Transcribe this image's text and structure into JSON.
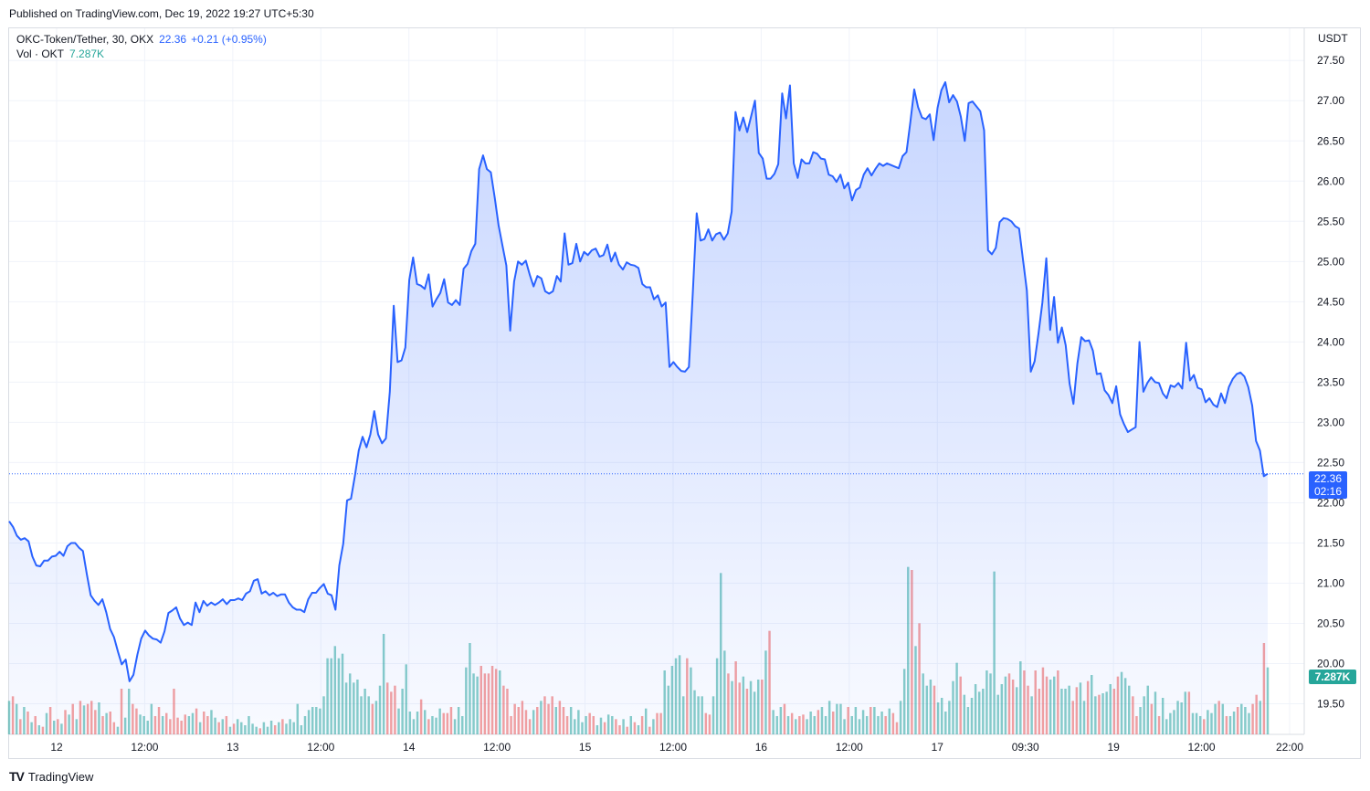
{
  "header": {
    "published": "Published on TradingView.com, Dec 19, 2022 19:27 UTC+5:30"
  },
  "legend": {
    "symbol": "OKC-Token/Tether, 30, OKX",
    "last": "22.36",
    "change": "+0.21 (+0.95%)",
    "volume_label": "Vol · OKT",
    "volume_value": "7.287K"
  },
  "axis": {
    "currency": "USDT"
  },
  "badges": {
    "price": "22.36",
    "countdown": "02:16",
    "volume": "7.287K"
  },
  "footer": {
    "brand": "TradingView",
    "logo_icon": "tradingview-logo-icon"
  },
  "colors": {
    "line": "#2962ff",
    "area": "#2962ff",
    "vol_up": "#26a69a",
    "vol_down": "#ef5350",
    "grid": "#f0f3fa"
  },
  "chart_data": {
    "type": "area",
    "ylim": [
      19.12,
      27.9
    ],
    "y_ticks": [
      "19.50",
      "20.00",
      "20.50",
      "21.00",
      "21.50",
      "22.00",
      "22.50",
      "23.00",
      "23.50",
      "24.00",
      "24.50",
      "25.00",
      "25.50",
      "26.00",
      "26.50",
      "27.00",
      "27.50"
    ],
    "x_ticks": [
      "12",
      "12:00",
      "13",
      "12:00",
      "14",
      "12:00",
      "15",
      "12:00",
      "16",
      "12:00",
      "17",
      "09:30",
      "19",
      "12:00",
      "22:00"
    ],
    "price": [
      21.77,
      21.7,
      21.59,
      21.54,
      21.56,
      21.52,
      21.33,
      21.22,
      21.21,
      21.28,
      21.28,
      21.33,
      21.34,
      21.39,
      21.34,
      21.46,
      21.5,
      21.5,
      21.44,
      21.4,
      21.11,
      20.85,
      20.78,
      20.73,
      20.8,
      20.64,
      20.43,
      20.33,
      20.15,
      19.99,
      20.05,
      19.78,
      19.86,
      20.11,
      20.31,
      20.41,
      20.35,
      20.31,
      20.3,
      20.26,
      20.4,
      20.63,
      20.66,
      20.7,
      20.56,
      20.48,
      20.51,
      20.48,
      20.76,
      20.64,
      20.78,
      20.72,
      20.76,
      20.73,
      20.76,
      20.8,
      20.74,
      20.79,
      20.79,
      20.81,
      20.79,
      20.87,
      20.9,
      21.03,
      21.05,
      20.87,
      20.9,
      20.85,
      20.88,
      20.84,
      20.86,
      20.86,
      20.76,
      20.7,
      20.67,
      20.67,
      20.64,
      20.8,
      20.88,
      20.88,
      20.94,
      20.99,
      20.87,
      20.85,
      20.67,
      21.22,
      21.49,
      22.03,
      22.05,
      22.33,
      22.65,
      22.82,
      22.69,
      22.85,
      23.14,
      22.85,
      22.74,
      22.8,
      23.38,
      24.45,
      23.75,
      23.77,
      23.93,
      24.77,
      25.05,
      24.72,
      24.7,
      24.66,
      24.84,
      24.44,
      24.53,
      24.61,
      24.78,
      24.49,
      24.46,
      24.52,
      24.46,
      24.91,
      24.97,
      25.13,
      25.22,
      26.15,
      26.32,
      26.15,
      26.11,
      25.8,
      25.45,
      25.2,
      24.95,
      24.14,
      24.75,
      25.0,
      24.96,
      25.01,
      24.84,
      24.69,
      24.82,
      24.79,
      24.63,
      24.6,
      24.63,
      24.82,
      24.75,
      25.35,
      24.96,
      24.98,
      25.22,
      25.0,
      25.12,
      25.08,
      25.14,
      25.16,
      25.06,
      25.08,
      25.21,
      25.0,
      25.11,
      24.96,
      24.9,
      24.99,
      24.96,
      24.95,
      24.92,
      24.72,
      24.68,
      24.68,
      24.53,
      24.58,
      24.44,
      24.49,
      23.69,
      23.75,
      23.69,
      23.64,
      23.63,
      23.69,
      24.6,
      25.6,
      25.26,
      25.28,
      25.4,
      25.26,
      25.34,
      25.36,
      25.27,
      25.35,
      25.62,
      26.86,
      26.63,
      26.79,
      26.61,
      26.8,
      27.0,
      26.35,
      26.28,
      26.03,
      26.03,
      26.09,
      26.21,
      27.09,
      26.78,
      27.19,
      26.22,
      26.04,
      26.27,
      26.22,
      26.22,
      26.36,
      26.34,
      26.28,
      26.27,
      26.08,
      26.06,
      25.99,
      26.08,
      25.91,
      25.98,
      25.76,
      25.89,
      25.92,
      26.08,
      26.16,
      26.07,
      26.15,
      26.22,
      26.19,
      26.22,
      26.2,
      26.18,
      26.16,
      26.31,
      26.36,
      26.73,
      27.14,
      26.92,
      26.79,
      26.77,
      26.83,
      26.51,
      26.91,
      27.13,
      27.23,
      26.98,
      27.07,
      26.99,
      26.8,
      26.5,
      26.97,
      26.99,
      26.93,
      26.87,
      26.63,
      25.14,
      25.09,
      25.17,
      25.49,
      25.54,
      25.53,
      25.5,
      25.44,
      25.41,
      25.02,
      24.64,
      23.63,
      23.76,
      24.11,
      24.49,
      25.04,
      24.15,
      24.56,
      23.99,
      24.18,
      23.96,
      23.48,
      23.23,
      23.73,
      24.06,
      24.01,
      24.02,
      23.89,
      23.6,
      23.61,
      23.4,
      23.34,
      23.24,
      23.45,
      23.1,
      22.98,
      22.88,
      22.91,
      22.94,
      24.0,
      23.38,
      23.49,
      23.56,
      23.5,
      23.49,
      23.36,
      23.3,
      23.46,
      23.44,
      23.49,
      23.42,
      23.99,
      23.52,
      23.59,
      23.43,
      23.41,
      23.25,
      23.3,
      23.22,
      23.19,
      23.36,
      23.24,
      23.44,
      23.54,
      23.6,
      23.62,
      23.57,
      23.44,
      23.21,
      22.77,
      22.65,
      22.33,
      22.36
    ],
    "volume": [
      0.22,
      -0.25,
      0.2,
      -0.1,
      0.18,
      -0.15,
      0.08,
      -0.12,
      0.06,
      -0.05,
      0.14,
      -0.18,
      0.09,
      -0.1,
      0.07,
      -0.16,
      0.13,
      -0.2,
      0.1,
      -0.22,
      0.19,
      -0.2,
      -0.22,
      -0.16,
      0.21,
      -0.12,
      0.14,
      -0.15,
      -0.08,
      0.05,
      -0.3,
      0.11,
      0.3,
      -0.2,
      -0.17,
      0.13,
      0.12,
      0.09,
      0.2,
      -0.12,
      -0.18,
      0.12,
      -0.14,
      -0.1,
      -0.3,
      -0.11,
      -0.09,
      -0.13,
      0.12,
      0.14,
      -0.17,
      0.08,
      -0.15,
      -0.12,
      0.16,
      0.11,
      -0.08,
      0.1,
      -0.12,
      0.05,
      -0.07,
      0.1,
      0.08,
      0.06,
      0.12,
      0.07,
      0.05,
      -0.04,
      0.08,
      0.05,
      0.09,
      -0.06,
      0.08,
      -0.1,
      0.07,
      0.1,
      0.08,
      0.2,
      0.06,
      0.12,
      0.16,
      0.18,
      0.18,
      0.17,
      0.25,
      0.5,
      0.5,
      0.58,
      0.5,
      0.53,
      0.34,
      0.4,
      0.34,
      0.36,
      0.25,
      0.3,
      0.25,
      -0.2,
      0.22,
      0.32,
      0.66,
      -0.34,
      -0.28,
      -0.32,
      0.17,
      0.3,
      0.46,
      0.15,
      0.1,
      0.15,
      -0.23,
      0.16,
      -0.1,
      0.12,
      0.11,
      0.17,
      -0.14,
      -0.14,
      -0.18,
      0.1,
      0.18,
      0.12,
      0.44,
      0.6,
      0.4,
      0.38,
      -0.45,
      -0.4,
      -0.4,
      -0.45,
      -0.43,
      0.42,
      -0.32,
      -0.3,
      -0.12,
      -0.2,
      -0.18,
      -0.22,
      -0.16,
      -0.1,
      0.16,
      -0.18,
      0.22,
      -0.25,
      -0.2,
      -0.25,
      0.18,
      -0.22,
      -0.18,
      -0.12,
      0.18,
      0.1,
      0.16,
      0.08,
      0.12,
      -0.14,
      -0.12,
      0.06,
      0.11,
      -0.08,
      0.13,
      0.12,
      -0.1,
      -0.06,
      0.1,
      -0.05,
      0.12,
      -0.08,
      0.06,
      -0.12,
      0.17,
      -0.05,
      0.1,
      -0.14,
      -0.14,
      0.42,
      0.32,
      0.45,
      0.5,
      0.52,
      0.25,
      -0.5,
      0.44,
      0.29,
      0.25,
      0.25,
      -0.14,
      -0.13,
      0.25,
      0.5,
      1.06,
      0.55,
      -0.4,
      0.35,
      -0.48,
      -0.34,
      0.38,
      -0.3,
      0.35,
      0.28,
      0.36,
      -0.36,
      0.55,
      -0.68,
      0.16,
      0.12,
      0.18,
      -0.2,
      0.12,
      -0.14,
      0.1,
      -0.12,
      -0.13,
      0.1,
      0.15,
      0.12,
      -0.16,
      0.18,
      0.12,
      0.22,
      -0.15,
      0.2,
      0.2,
      0.1,
      -0.18,
      0.12,
      0.18,
      0.1,
      0.16,
      0.12,
      -0.18,
      0.18,
      0.12,
      0.15,
      -0.12,
      0.17,
      -0.14,
      -0.08,
      0.22,
      0.43,
      1.1,
      -1.08,
      0.58,
      -0.73,
      0.4,
      0.32,
      0.36,
      -0.32,
      0.21,
      0.24,
      0.15,
      0.22,
      0.35,
      0.47,
      -0.38,
      0.26,
      0.18,
      0.24,
      0.33,
      0.28,
      0.3,
      0.42,
      0.4,
      1.07,
      0.26,
      0.33,
      0.38,
      -0.4,
      -0.36,
      0.31,
      0.48,
      -0.42,
      -0.32,
      0.25,
      -0.42,
      -0.3,
      -0.44,
      -0.38,
      0.36,
      0.38,
      -0.42,
      0.3,
      0.3,
      0.32,
      -0.22,
      -0.31,
      0.34,
      0.22,
      -0.35,
      0.39,
      0.25,
      -0.26,
      0.27,
      0.28,
      0.33,
      -0.3,
      -0.38,
      0.41,
      0.37,
      0.32,
      -0.25,
      -0.12,
      0.18,
      0.25,
      0.32,
      -0.2,
      0.28,
      -0.12,
      0.24,
      0.1,
      0.14,
      0.16,
      0.22,
      0.21,
      0.28,
      -0.28,
      0.14,
      0.14,
      0.12,
      -0.1,
      0.16,
      0.14,
      0.2,
      -0.22,
      0.2,
      -0.12,
      0.12,
      0.15,
      -0.18,
      0.2,
      0.18,
      0.14,
      -0.2,
      -0.26,
      0.22,
      -0.6,
      0.44
    ]
  }
}
